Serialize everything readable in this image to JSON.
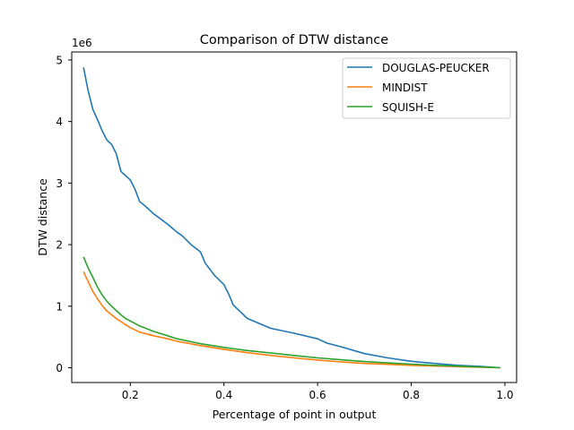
{
  "chart_data": {
    "type": "line",
    "title": "Comparison of DTW distance",
    "xlabel": "Percentage of point in output",
    "ylabel": "DTW distance",
    "y_offset_text": "1e6",
    "xlim": [
      0.075,
      1.025
    ],
    "ylim": [
      -240000,
      5130000
    ],
    "x_ticks": [
      0.2,
      0.4,
      0.6,
      0.8,
      1.0
    ],
    "x_tick_labels": [
      "0.2",
      "0.4",
      "0.6",
      "0.8",
      "1.0"
    ],
    "y_ticks": [
      0,
      1000000,
      2000000,
      3000000,
      4000000,
      5000000
    ],
    "y_tick_labels": [
      "0",
      "1",
      "2",
      "3",
      "4",
      "5"
    ],
    "grid": false,
    "legend_position": "top-right",
    "series": [
      {
        "name": "DOUGLAS-PEUCKER",
        "color": "#1f77b4",
        "x": [
          0.1,
          0.11,
          0.12,
          0.13,
          0.14,
          0.15,
          0.16,
          0.17,
          0.18,
          0.19,
          0.2,
          0.21,
          0.22,
          0.23,
          0.25,
          0.28,
          0.3,
          0.31,
          0.33,
          0.35,
          0.36,
          0.38,
          0.4,
          0.41,
          0.42,
          0.45,
          0.5,
          0.55,
          0.6,
          0.62,
          0.65,
          0.7,
          0.75,
          0.8,
          0.85,
          0.9,
          0.95,
          0.99
        ],
        "y": [
          4880000,
          4500000,
          4200000,
          4030000,
          3850000,
          3700000,
          3630000,
          3480000,
          3190000,
          3120000,
          3050000,
          2900000,
          2700000,
          2640000,
          2500000,
          2330000,
          2200000,
          2150000,
          2000000,
          1880000,
          1700000,
          1500000,
          1350000,
          1200000,
          1020000,
          800000,
          640000,
          560000,
          470000,
          400000,
          340000,
          230000,
          160000,
          105000,
          70000,
          40000,
          20000,
          0
        ]
      },
      {
        "name": "MINDIST",
        "color": "#ff7f0e",
        "x": [
          0.1,
          0.11,
          0.12,
          0.13,
          0.14,
          0.15,
          0.16,
          0.17,
          0.18,
          0.19,
          0.2,
          0.22,
          0.25,
          0.28,
          0.3,
          0.35,
          0.4,
          0.45,
          0.5,
          0.55,
          0.6,
          0.65,
          0.7,
          0.75,
          0.8,
          0.85,
          0.9,
          0.95,
          0.99
        ],
        "y": [
          1560000,
          1400000,
          1240000,
          1120000,
          1010000,
          920000,
          860000,
          800000,
          750000,
          700000,
          650000,
          580000,
          520000,
          470000,
          430000,
          360000,
          300000,
          245000,
          200000,
          160000,
          125000,
          95000,
          70000,
          55000,
          40000,
          28000,
          18000,
          8000,
          0
        ]
      },
      {
        "name": "SQUISH-E",
        "color": "#2ca02c",
        "x": [
          0.1,
          0.11,
          0.12,
          0.13,
          0.14,
          0.15,
          0.16,
          0.17,
          0.18,
          0.19,
          0.2,
          0.22,
          0.25,
          0.28,
          0.3,
          0.35,
          0.4,
          0.45,
          0.5,
          0.55,
          0.6,
          0.65,
          0.7,
          0.75,
          0.8,
          0.85,
          0.9,
          0.95,
          0.99
        ],
        "y": [
          1800000,
          1620000,
          1470000,
          1310000,
          1180000,
          1080000,
          1000000,
          930000,
          860000,
          800000,
          760000,
          680000,
          590000,
          520000,
          470000,
          390000,
          330000,
          280000,
          240000,
          200000,
          160000,
          130000,
          100000,
          78000,
          58000,
          40000,
          25000,
          12000,
          0
        ]
      }
    ]
  }
}
